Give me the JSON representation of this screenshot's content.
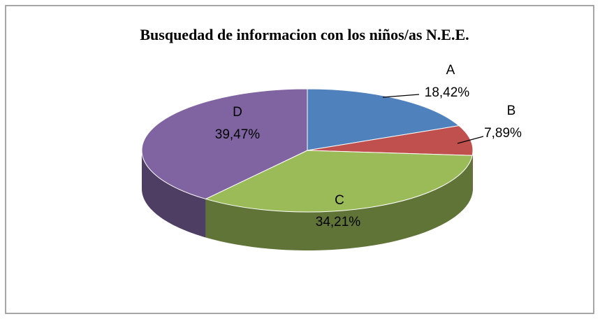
{
  "chart_data": {
    "type": "pie",
    "title": "Busquedad de informacion con los niños/as N.E.E.",
    "categories": [
      "A",
      "B",
      "C",
      "D"
    ],
    "values": [
      18.42,
      7.89,
      34.21,
      39.47
    ],
    "value_labels": [
      "18,42%",
      "7,89%",
      "34,21%",
      "39,47%"
    ],
    "colors": [
      "#4f81bd",
      "#c0504d",
      "#9bbb59",
      "#8064a2"
    ]
  }
}
